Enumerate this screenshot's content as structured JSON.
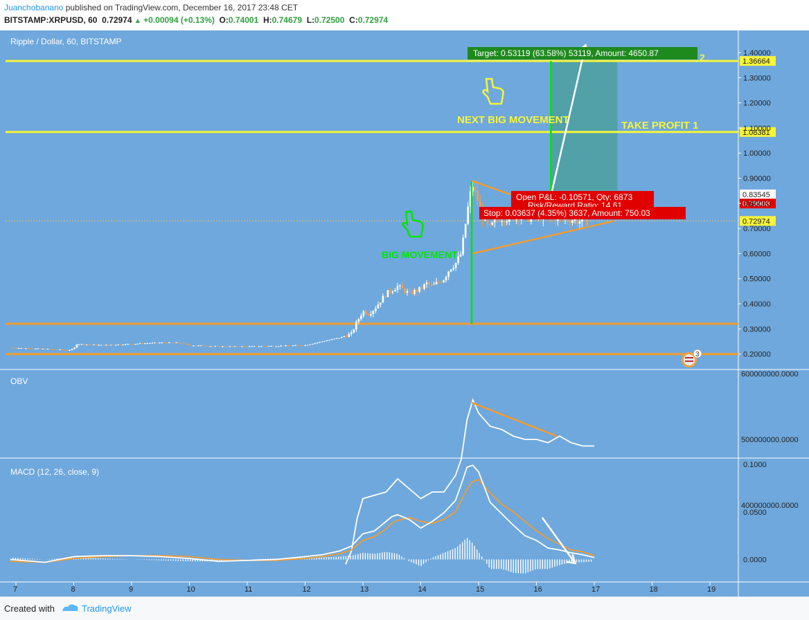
{
  "header": {
    "author": "Juanchobanano",
    "published": " published on TradingView.com, December 16, 2017 23:48 CET",
    "symbol": "BITSTAMP:XRPUSD, 60",
    "last": "0.72974",
    "change": "+0.00094 (+0.13%)",
    "o_label": "O:",
    "o": "0.74001",
    "h_label": "H:",
    "h": "0.74679",
    "l_label": "L:",
    "l": "0.72500",
    "c_label": "C:",
    "c": "0.72974"
  },
  "footer": {
    "created_with": "Created with",
    "brand": "TradingView"
  },
  "colors": {
    "background": "#6fa8dc",
    "candle_up": "#ffffff",
    "candle_down": "#f0a050",
    "orange": "#f39c2c",
    "yellow": "#f5f53a",
    "green": "#00e600",
    "target_box": "#2a8a3a",
    "stop_box": "#e00000",
    "profit_zone": "#4ea0a0"
  },
  "chart_data": [
    {
      "type": "line",
      "panel": "price",
      "title": "Ripple / Dollar, 60, BITSTAMP",
      "y_ticks": [
        "1.40000",
        "1.30000",
        "1.20000",
        "1.10000",
        "1.00000",
        "0.90000",
        "0.80000",
        "0.70000",
        "0.60000",
        "0.50000",
        "0.40000",
        "0.30000",
        "0.20000"
      ],
      "ylim": [
        0.17,
        1.43
      ],
      "x_ticks": [
        "7",
        "8",
        "9",
        "10",
        "11",
        "12",
        "13",
        "14",
        "15",
        "16",
        "17",
        "18",
        "19"
      ],
      "xlim": [
        6.9,
        19.5
      ],
      "series": [
        {
          "x": [
            6.9,
            7.5,
            7.9,
            8.0,
            8.05,
            8.5,
            9.0,
            9.5,
            9.8,
            10.0,
            10.5,
            11.0,
            11.5,
            12.0,
            12.2,
            12.4,
            12.6,
            12.8,
            12.9,
            13.0,
            13.1,
            13.2,
            13.4,
            13.6,
            13.8,
            14.0,
            14.1,
            14.2,
            14.4,
            14.5,
            14.6,
            14.7,
            14.8,
            14.85,
            14.9,
            15.0,
            15.1,
            15.2,
            15.3,
            15.5,
            15.7,
            15.9,
            16.0,
            16.2,
            16.4,
            16.6,
            16.8,
            16.9
          ],
          "values": [
            0.225,
            0.22,
            0.215,
            0.22,
            0.24,
            0.235,
            0.24,
            0.245,
            0.245,
            0.235,
            0.23,
            0.23,
            0.232,
            0.235,
            0.245,
            0.255,
            0.265,
            0.28,
            0.33,
            0.37,
            0.36,
            0.38,
            0.44,
            0.47,
            0.44,
            0.46,
            0.48,
            0.47,
            0.5,
            0.54,
            0.56,
            0.6,
            0.76,
            0.83,
            0.87,
            0.8,
            0.72,
            0.7,
            0.74,
            0.74,
            0.75,
            0.74,
            0.75,
            0.745,
            0.74,
            0.735,
            0.725,
            0.73
          ]
        }
      ],
      "horizontal_levels": [
        {
          "value": 1.36664,
          "label": "1.36664",
          "color": "#f5f53a",
          "note": "2"
        },
        {
          "value": 1.08381,
          "label": "1.08381",
          "color": "#f5f53a",
          "note": "TAKE PROFIT 1"
        },
        {
          "value": 0.3203,
          "color": "#f39c2c"
        },
        {
          "value": 0.1996,
          "color": "#f39c2c"
        }
      ],
      "price_labels": [
        {
          "value": 0.83545,
          "label": "0.83545"
        },
        {
          "value": 0.79908,
          "label": "0.79908"
        },
        {
          "value": 0.72974,
          "label": "0.72974"
        }
      ],
      "annotations": {
        "target": "Target: 0.53119 (63.58%) 53119, Amount: 4650.87",
        "open_pl": "Open P&L: -0.10571, Qty: 6873",
        "risk_reward": "Risk/Reward Ratio: 14.61",
        "stop": "Stop: 0.03637 (4.35%) 3637, Amount: 750.03",
        "next_big_movement": "NEXT BIG MOVEMENT",
        "big_movement": "BIG MOVEMENT",
        "take_profit": "TAKE PROFIT 1",
        "level_2": "2",
        "flag_badge": "3"
      }
    },
    {
      "type": "line",
      "panel": "obv",
      "title": "OBV",
      "y_ticks": [
        "600000000.0000",
        "500000000.0000",
        "400000000.0000"
      ],
      "ylim": [
        310000000,
        610000000
      ],
      "x": [
        12.7,
        12.8,
        12.9,
        13.0,
        13.2,
        13.4,
        13.6,
        13.8,
        14.0,
        14.2,
        14.4,
        14.6,
        14.7,
        14.8,
        14.9,
        15.0,
        15.2,
        15.4,
        15.6,
        15.8,
        16.0,
        16.2,
        16.4,
        16.6,
        16.8,
        17.0
      ],
      "series": [
        {
          "values": [
            310000000,
            330000000,
            380000000,
            410000000,
            415000000,
            420000000,
            440000000,
            425000000,
            410000000,
            420000000,
            420000000,
            445000000,
            470000000,
            530000000,
            560000000,
            540000000,
            520000000,
            515000000,
            505000000,
            500000000,
            500000000,
            495000000,
            505000000,
            495000000,
            490000000,
            490000000
          ]
        }
      ]
    },
    {
      "type": "line",
      "panel": "macd",
      "title": "MACD (12, 26, close, 9)",
      "y_ticks": [
        "0.1000",
        "0.0500",
        "0.0000"
      ],
      "ylim": [
        -0.0165,
        0.101
      ],
      "x": [
        6.9,
        7.5,
        8.0,
        8.5,
        9.0,
        9.5,
        10.0,
        10.5,
        11.0,
        11.5,
        12.0,
        12.3,
        12.6,
        12.8,
        13.0,
        13.2,
        13.4,
        13.5,
        13.6,
        13.8,
        14.0,
        14.2,
        14.4,
        14.6,
        14.7,
        14.8,
        14.9,
        15.0,
        15.2,
        15.4,
        15.6,
        15.8,
        16.0,
        16.2,
        16.4,
        16.6,
        16.8,
        17.0
      ],
      "series": [
        {
          "name": "MACD",
          "values": [
            0.0,
            -0.003,
            0.003,
            0.004,
            0.004,
            0.003,
            0.001,
            -0.002,
            -0.001,
            0.0,
            0.003,
            0.005,
            0.009,
            0.014,
            0.027,
            0.03,
            0.04,
            0.045,
            0.047,
            0.042,
            0.033,
            0.04,
            0.049,
            0.062,
            0.079,
            0.097,
            0.099,
            0.092,
            0.06,
            0.048,
            0.036,
            0.025,
            0.02,
            0.012,
            0.01,
            0.007,
            0.005,
            0.002
          ]
        },
        {
          "name": "Signal",
          "values": [
            -0.002,
            -0.003,
            0.001,
            0.003,
            0.004,
            0.004,
            0.003,
            0.0,
            -0.001,
            -0.001,
            0.001,
            0.003,
            0.006,
            0.01,
            0.02,
            0.024,
            0.032,
            0.038,
            0.041,
            0.044,
            0.04,
            0.038,
            0.042,
            0.05,
            0.062,
            0.074,
            0.082,
            0.084,
            0.07,
            0.058,
            0.05,
            0.04,
            0.03,
            0.022,
            0.016,
            0.01,
            0.008,
            0.004
          ]
        }
      ]
    }
  ]
}
